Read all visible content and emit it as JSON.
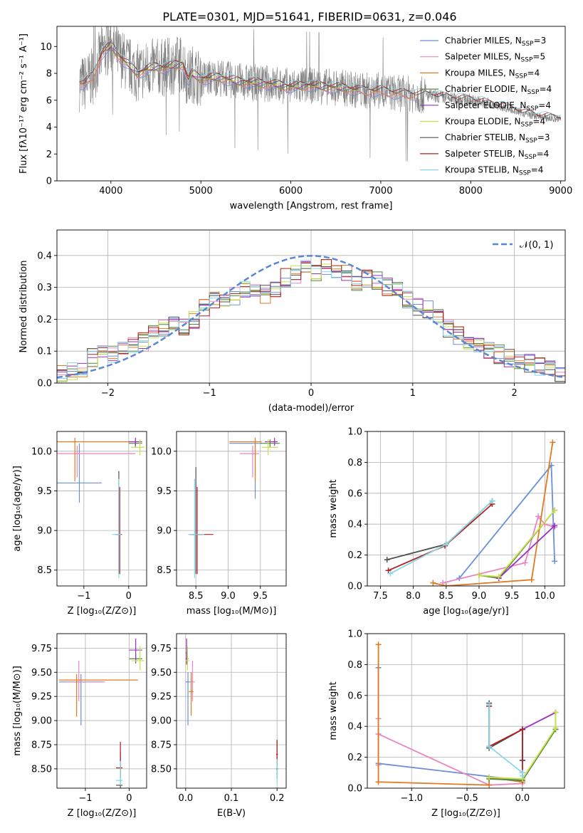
{
  "figure_title": "PLATE=0301, MJD=51641, FIBERID=0631, z=0.046",
  "colors": {
    "Chabrier MILES": "#6a8fd8",
    "Salpeter MILES": "#e887c0",
    "Kroupa MILES": "#e07b22",
    "Chabrier ELODIE": "#4f8a3e",
    "Salpeter ELODIE": "#9b30c0",
    "Kroupa ELODIE": "#c9e04a",
    "Chabrier STELIB": "#505050",
    "Salpeter STELIB": "#b02020",
    "Kroupa STELIB": "#88d8e8",
    "data": "#808080",
    "normal": "#5b86d6"
  },
  "chart_data": [
    {
      "type": "line",
      "id": "spectrum",
      "xlabel": "wavelength [Angstrom, rest frame]",
      "ylabel": "Flux [fλ10⁻¹⁷ erg cm⁻² s⁻¹ A⁻¹]",
      "xlim": [
        3400,
        9050
      ],
      "ylim": [
        0,
        11.5
      ],
      "xticks": [
        4000,
        5000,
        6000,
        7000,
        8000,
        9000
      ],
      "yticks": [
        0,
        2,
        4,
        6,
        8,
        10
      ],
      "grid": false,
      "legend_position": "top-right",
      "legend": [
        {
          "name": "Chabrier MILES",
          "suffix": "=3"
        },
        {
          "name": "Salpeter MILES",
          "suffix": "=5"
        },
        {
          "name": "Kroupa MILES",
          "suffix": "=4"
        },
        {
          "name": "Chabrier ELODIE",
          "suffix": "=4"
        },
        {
          "name": "Salpeter ELODIE",
          "suffix": "=4"
        },
        {
          "name": "Kroupa ELODIE",
          "suffix": "=4"
        },
        {
          "name": "Chabrier STELIB",
          "suffix": "=3"
        },
        {
          "name": "Salpeter STELIB",
          "suffix": "=4"
        },
        {
          "name": "Kroupa STELIB",
          "suffix": "=4"
        }
      ],
      "model_continuum": {
        "x": [
          3650,
          3700,
          3800,
          3900,
          4000,
          4100,
          4200,
          4300,
          4400,
          4500,
          4600,
          4700,
          4800,
          4860,
          4900,
          5000,
          5200,
          5400,
          5600,
          5800,
          6000,
          6200,
          6400,
          6600,
          6800,
          7000,
          7200,
          7400,
          7600,
          7800,
          8000,
          8200,
          8400,
          8600,
          8800,
          9000
        ],
        "y": [
          7.3,
          7.2,
          7.8,
          9.5,
          10.1,
          9.2,
          8.6,
          8.0,
          8.3,
          8.5,
          8.4,
          8.6,
          8.7,
          7.5,
          8.0,
          7.6,
          7.7,
          7.4,
          7.3,
          7.2,
          7.0,
          7.1,
          7.0,
          6.9,
          6.7,
          6.7,
          6.5,
          6.4,
          6.3,
          6.1,
          6.0,
          5.7,
          5.4,
          5.0,
          4.7,
          4.6
        ]
      },
      "data_extent": [
        3650,
        9000
      ]
    },
    {
      "type": "bar",
      "id": "residuals",
      "xlabel": "(data-model)/error",
      "ylabel": "Normed distribution",
      "xlim": [
        -2.5,
        2.5
      ],
      "ylim": [
        0,
        0.48
      ],
      "xticks": [
        -2,
        -1,
        0,
        1,
        2
      ],
      "yticks": [
        0.0,
        0.1,
        0.2,
        0.3,
        0.4
      ],
      "grid": true,
      "legend_position": "top-right",
      "legend": [
        {
          "name": "𝒩(0, 1)"
        }
      ],
      "bin_edges_start": -2.5,
      "bin_width": 0.1,
      "reference_values": [
        0.03,
        0.04,
        0.04,
        0.08,
        0.09,
        0.09,
        0.1,
        0.12,
        0.13,
        0.16,
        0.17,
        0.19,
        0.18,
        0.2,
        0.24,
        0.26,
        0.25,
        0.27,
        0.29,
        0.29,
        0.28,
        0.3,
        0.33,
        0.34,
        0.36,
        0.35,
        0.37,
        0.35,
        0.34,
        0.32,
        0.33,
        0.32,
        0.3,
        0.29,
        0.26,
        0.24,
        0.23,
        0.2,
        0.17,
        0.15,
        0.13,
        0.12,
        0.1,
        0.09,
        0.08,
        0.07,
        0.06,
        0.05,
        0.04,
        0.03
      ]
    },
    {
      "type": "scatter",
      "id": "age_vs_Z",
      "xlabel": "Z [log₁₀(Z/Z⊙)]",
      "ylabel": "age  [log₁₀(age/yr)]",
      "xlim": [
        -1.6,
        0.4
      ],
      "ylim": [
        8.3,
        10.25
      ],
      "xticks": [
        -1,
        0
      ],
      "yticks": [
        8.5,
        9.0,
        9.5,
        10.0
      ],
      "points": [
        {
          "series": "Chabrier MILES",
          "x": -1.1,
          "y": 9.6,
          "xerr": [
            0.5,
            0.5
          ],
          "yerr": [
            0.25,
            0.5
          ]
        },
        {
          "series": "Salpeter MILES",
          "x": -1.15,
          "y": 9.97,
          "xerr": [
            0.55,
            1.3
          ],
          "yerr": [
            0.3,
            0.1
          ]
        },
        {
          "series": "Kroupa MILES",
          "x": -1.2,
          "y": 10.12,
          "xerr": [
            0.55,
            1.3
          ],
          "yerr": [
            0.5,
            0.05
          ]
        },
        {
          "series": "Chabrier ELODIE",
          "x": 0.15,
          "y": 10.1,
          "xerr": [
            0.15,
            0.15
          ],
          "yerr": [
            0.05,
            0.05
          ]
        },
        {
          "series": "Salpeter ELODIE",
          "x": 0.15,
          "y": 10.12,
          "xerr": [
            0.15,
            0.15
          ],
          "yerr": [
            0.05,
            0.05
          ]
        },
        {
          "series": "Kroupa ELODIE",
          "x": 0.25,
          "y": 10.05,
          "xerr": [
            0.2,
            0.1
          ],
          "yerr": [
            0.1,
            0.1
          ]
        },
        {
          "series": "Chabrier STELIB",
          "x": -0.22,
          "y": 8.95,
          "xerr": [
            0.05,
            0.05
          ],
          "yerr": [
            0.5,
            0.8
          ]
        },
        {
          "series": "Salpeter STELIB",
          "x": -0.2,
          "y": 8.95,
          "xerr": [
            0.1,
            0.05
          ],
          "yerr": [
            0.5,
            0.6
          ]
        },
        {
          "series": "Kroupa STELIB",
          "x": -0.22,
          "y": 8.95,
          "xerr": [
            0.15,
            0.05
          ],
          "yerr": [
            0.55,
            0.7
          ]
        }
      ]
    },
    {
      "type": "scatter",
      "id": "age_vs_mass",
      "xlabel": "mass [log₁₀(M/M⊙)]",
      "ylabel": "",
      "xlim": [
        8.2,
        9.9
      ],
      "ylim": [
        8.3,
        10.25
      ],
      "xticks": [
        8.5,
        9.0,
        9.5
      ],
      "yticks": [
        8.5,
        9.0,
        9.5,
        10.0
      ],
      "points": [
        {
          "series": "Chabrier MILES",
          "x": 9.42,
          "y": 10.1,
          "xerr": [
            0.4,
            0.1
          ],
          "yerr": [
            0.7,
            0.05
          ]
        },
        {
          "series": "Salpeter MILES",
          "x": 9.38,
          "y": 9.97,
          "xerr": [
            0.2,
            0.1
          ],
          "yerr": [
            0.3,
            0.1
          ]
        },
        {
          "series": "Kroupa MILES",
          "x": 9.42,
          "y": 10.12,
          "xerr": [
            0.4,
            0.1
          ],
          "yerr": [
            0.5,
            0.05
          ]
        },
        {
          "series": "Chabrier ELODIE",
          "x": 9.65,
          "y": 10.1,
          "xerr": [
            0.15,
            0.15
          ],
          "yerr": [
            0.05,
            0.05
          ]
        },
        {
          "series": "Salpeter ELODIE",
          "x": 9.72,
          "y": 10.12,
          "xerr": [
            0.15,
            0.05
          ],
          "yerr": [
            0.05,
            0.05
          ]
        },
        {
          "series": "Kroupa ELODIE",
          "x": 9.62,
          "y": 10.05,
          "xerr": [
            0.1,
            0.15
          ],
          "yerr": [
            0.1,
            0.1
          ]
        },
        {
          "series": "Chabrier STELIB",
          "x": 8.5,
          "y": 8.95,
          "xerr": [
            0.1,
            0.1
          ],
          "yerr": [
            0.5,
            0.85
          ]
        },
        {
          "series": "Salpeter STELIB",
          "x": 8.52,
          "y": 8.95,
          "xerr": [
            0.1,
            0.25
          ],
          "yerr": [
            0.5,
            0.6
          ]
        },
        {
          "series": "Kroupa STELIB",
          "x": 8.48,
          "y": 8.95,
          "xerr": [
            0.1,
            0.15
          ],
          "yerr": [
            0.55,
            0.7
          ]
        }
      ]
    },
    {
      "type": "line",
      "id": "weight_vs_age",
      "xlabel": "age  [log₁₀(age/yr)]",
      "ylabel": "mass weight",
      "xlim": [
        7.3,
        10.3
      ],
      "ylim": [
        0,
        1.0
      ],
      "xticks": [
        7.5,
        8.0,
        8.5,
        9.0,
        9.5,
        10.0
      ],
      "yticks": [
        0.0,
        0.2,
        0.4,
        0.6,
        0.8,
        1.0
      ],
      "grid": true,
      "series": [
        {
          "name": "Chabrier MILES",
          "x": [
            8.7,
            10.1,
            10.15
          ],
          "y": [
            0.05,
            0.78,
            0.16
          ]
        },
        {
          "name": "Salpeter MILES",
          "x": [
            8.45,
            9.7,
            9.9,
            10.0,
            10.15
          ],
          "y": [
            0.02,
            0.15,
            0.45,
            0.4,
            0.38
          ]
        },
        {
          "name": "Kroupa MILES",
          "x": [
            8.3,
            8.5,
            9.8,
            10.12
          ],
          "y": [
            0.02,
            0.0,
            0.04,
            0.93
          ]
        },
        {
          "name": "Chabrier ELODIE",
          "x": [
            9.0,
            9.3,
            10.15
          ],
          "y": [
            0.07,
            0.05,
            0.49
          ]
        },
        {
          "name": "Salpeter ELODIE",
          "x": [
            9.3,
            10.15
          ],
          "y": [
            0.05,
            0.39
          ]
        },
        {
          "name": "Kroupa ELODIE",
          "x": [
            9.0,
            9.3,
            10.15
          ],
          "y": [
            0.07,
            0.06,
            0.49
          ]
        },
        {
          "name": "Chabrier STELIB",
          "x": [
            7.6,
            8.5,
            9.2
          ],
          "y": [
            0.17,
            0.27,
            0.55
          ]
        },
        {
          "name": "Salpeter STELIB",
          "x": [
            7.62,
            8.48,
            9.2
          ],
          "y": [
            0.1,
            0.26,
            0.53
          ]
        },
        {
          "name": "Kroupa STELIB",
          "x": [
            7.65,
            8.5,
            9.2
          ],
          "y": [
            0.08,
            0.27,
            0.55
          ]
        }
      ]
    },
    {
      "type": "scatter",
      "id": "mass_vs_Z",
      "xlabel": "Z [log₁₀(Z/Z⊙)]",
      "ylabel": "mass [log₁₀(M/M⊙)]",
      "xlim": [
        -1.65,
        0.4
      ],
      "ylim": [
        8.3,
        9.9
      ],
      "xticks": [
        -1,
        0
      ],
      "yticks": [
        8.5,
        8.75,
        9.0,
        9.25,
        9.5,
        9.75
      ],
      "points": [
        {
          "series": "Chabrier MILES",
          "x": -1.1,
          "y": 9.4,
          "xerr": [
            0.5,
            0.5
          ],
          "yerr": [
            0.45,
            0.08
          ]
        },
        {
          "series": "Salpeter MILES",
          "x": -1.15,
          "y": 9.4,
          "xerr": [
            0.3,
            0.6
          ],
          "yerr": [
            0.2,
            0.22
          ]
        },
        {
          "series": "Kroupa MILES",
          "x": -1.2,
          "y": 9.42,
          "xerr": [
            0.4,
            1.4
          ],
          "yerr": [
            0.38,
            0.06
          ]
        },
        {
          "series": "Chabrier ELODIE",
          "x": 0.15,
          "y": 9.64,
          "xerr": [
            0.15,
            0.15
          ],
          "yerr": [
            0.05,
            0.05
          ]
        },
        {
          "series": "Salpeter ELODIE",
          "x": 0.15,
          "y": 9.73,
          "xerr": [
            0.15,
            0.15
          ],
          "yerr": [
            0.12,
            0.12
          ]
        },
        {
          "series": "Kroupa ELODIE",
          "x": 0.25,
          "y": 9.62,
          "xerr": [
            0.2,
            0.1
          ],
          "yerr": [
            0.1,
            0.15
          ]
        },
        {
          "series": "Chabrier STELIB",
          "x": -0.2,
          "y": 8.33,
          "xerr": [
            0.1,
            0.05
          ],
          "yerr": [
            0.05,
            0.35
          ]
        },
        {
          "series": "Salpeter STELIB",
          "x": -0.2,
          "y": 8.51,
          "xerr": [
            0.1,
            0.05
          ],
          "yerr": [
            0.1,
            0.27
          ]
        },
        {
          "series": "Kroupa STELIB",
          "x": -0.2,
          "y": 8.38,
          "xerr": [
            0.1,
            0.05
          ],
          "yerr": [
            0.05,
            0.2
          ]
        }
      ]
    },
    {
      "type": "scatter",
      "id": "mass_vs_EBV",
      "xlabel": "E(B-V)",
      "ylabel": "",
      "xlim": [
        -0.02,
        0.22
      ],
      "ylim": [
        8.3,
        9.9
      ],
      "xticks": [
        0.0,
        0.1,
        0.2
      ],
      "yticks": [
        8.5,
        8.75,
        9.0,
        9.25,
        9.5,
        9.75
      ],
      "points": [
        {
          "series": "Chabrier MILES",
          "x": 0.005,
          "y": 9.4,
          "xerr": [
            0.005,
            0.005
          ],
          "yerr": [
            0.45,
            0.1
          ]
        },
        {
          "series": "Salpeter MILES",
          "x": 0.015,
          "y": 9.4,
          "xerr": [
            0.005,
            0.005
          ],
          "yerr": [
            0.2,
            0.22
          ]
        },
        {
          "series": "Kroupa MILES",
          "x": 0.012,
          "y": 9.3,
          "xerr": [
            0.005,
            0.005
          ],
          "yerr": [
            0.25,
            0.2
          ]
        },
        {
          "series": "Chabrier ELODIE",
          "x": 0.003,
          "y": 9.64,
          "xerr": [
            0.003,
            0.003
          ],
          "yerr": [
            0.05,
            0.05
          ]
        },
        {
          "series": "Salpeter ELODIE",
          "x": 0.002,
          "y": 9.7,
          "xerr": [
            0.002,
            0.002
          ],
          "yerr": [
            0.12,
            0.15
          ]
        },
        {
          "series": "Kroupa ELODIE",
          "x": 0.004,
          "y": 9.62,
          "xerr": [
            0.004,
            0.004
          ],
          "yerr": [
            0.1,
            0.15
          ]
        },
        {
          "series": "Chabrier STELIB",
          "x": 0.2,
          "y": 8.5,
          "xerr": [
            0.002,
            0.002
          ],
          "yerr": [
            0.1,
            0.3
          ]
        },
        {
          "series": "Salpeter STELIB",
          "x": 0.2,
          "y": 8.65,
          "xerr": [
            0.002,
            0.002
          ],
          "yerr": [
            0.1,
            0.15
          ]
        },
        {
          "series": "Kroupa STELIB",
          "x": 0.2,
          "y": 8.45,
          "xerr": [
            0.002,
            0.002
          ],
          "yerr": [
            0.1,
            0.15
          ]
        }
      ]
    },
    {
      "type": "line",
      "id": "weight_vs_Z",
      "xlabel": "Z [log₁₀(Z/Z⊙)]",
      "ylabel": "mass weight",
      "xlim": [
        -1.4,
        0.38
      ],
      "ylim": [
        0,
        1.0
      ],
      "xticks": [
        -1.0,
        -0.5,
        0.0
      ],
      "yticks": [
        0.0,
        0.2,
        0.4,
        0.6,
        0.8,
        1.0
      ],
      "grid": true,
      "series": [
        {
          "name": "Chabrier MILES",
          "x": [
            -1.3,
            -1.3,
            0.0,
            0.0
          ],
          "y": [
            0.78,
            0.16,
            0.05,
            0.1
          ]
        },
        {
          "name": "Salpeter MILES",
          "x": [
            -1.3,
            -1.3,
            -1.3,
            -0.3,
            0.0
          ],
          "y": [
            0.45,
            0.15,
            0.35,
            0.02,
            0.03
          ]
        },
        {
          "name": "Kroupa MILES",
          "x": [
            -1.3,
            -1.3,
            -0.3,
            -0.3,
            0.0
          ],
          "y": [
            0.93,
            0.04,
            0.02,
            0.07,
            0.04
          ]
        },
        {
          "name": "Chabrier ELODIE",
          "x": [
            -0.3,
            0.0,
            0.3,
            0.3
          ],
          "y": [
            0.06,
            0.05,
            0.38,
            0.49
          ]
        },
        {
          "name": "Salpeter ELODIE",
          "x": [
            0.0,
            0.0,
            0.3
          ],
          "y": [
            0.18,
            0.38,
            0.49
          ]
        },
        {
          "name": "Kroupa ELODIE",
          "x": [
            -0.3,
            0.0,
            0.3,
            0.3
          ],
          "y": [
            0.07,
            0.06,
            0.39,
            0.49
          ]
        },
        {
          "name": "Chabrier STELIB",
          "x": [
            -0.3,
            -0.3,
            0.0,
            0.0
          ],
          "y": [
            0.55,
            0.26,
            0.38,
            0.18
          ]
        },
        {
          "name": "Salpeter STELIB",
          "x": [
            -0.3,
            -0.3,
            0.0,
            0.0
          ],
          "y": [
            0.53,
            0.27,
            0.38,
            0.1
          ]
        },
        {
          "name": "Kroupa STELIB",
          "x": [
            -0.3,
            -0.3,
            0.0,
            0.0
          ],
          "y": [
            0.54,
            0.27,
            0.1,
            0.08
          ]
        }
      ]
    }
  ]
}
